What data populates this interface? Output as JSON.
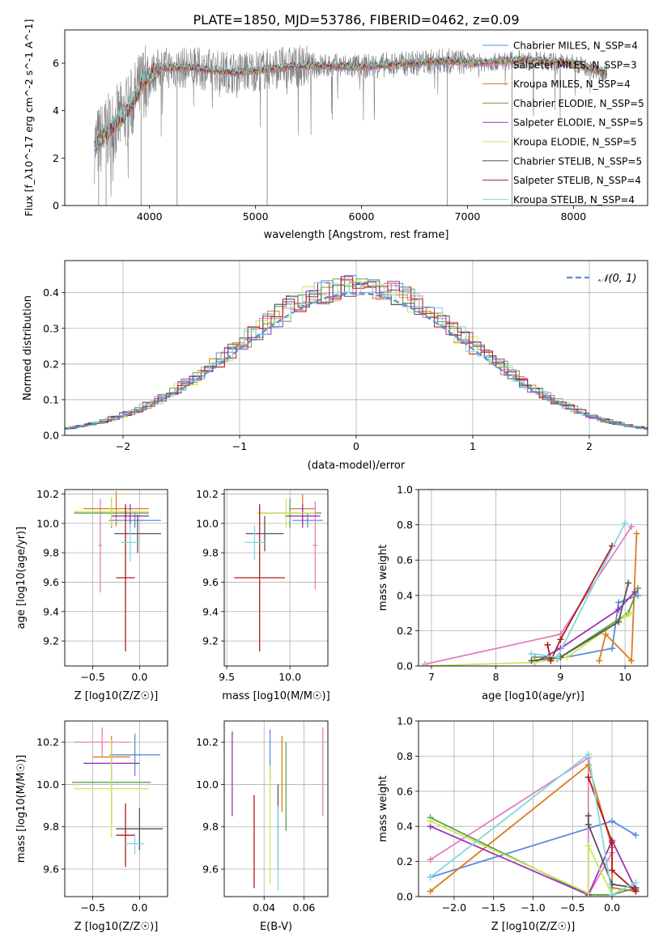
{
  "figure": {
    "title": "PLATE=1850, MJD=53786, FIBERID=0462, z=0.09"
  },
  "colors": {
    "Chabrier MILES": "#5b8bd9",
    "Salpeter MILES": "#e57fbe",
    "Kroupa MILES": "#e07b1a",
    "Chabrier ELODIE": "#5f9e4a",
    "Salpeter ELODIE": "#9b33b8",
    "Kroupa ELODIE": "#c9e85a",
    "Chabrier STELIB": "#555555",
    "Salpeter STELIB": "#b51a1a",
    "Kroupa STELIB": "#7fd8e0",
    "data": "#808080",
    "grid": "#b0b0b0",
    "normal_curve": "#5b8bd9"
  },
  "chart_data": [
    {
      "id": "spectrum",
      "type": "line",
      "xlabel": "wavelength [Angstrom, rest frame]",
      "ylabel": "Flux [f_λ10^-17 erg cm^-2 s^-1 A^-1]",
      "xlim": [
        3200,
        8700
      ],
      "ylim": [
        0,
        7.4
      ],
      "xticks": [
        4000,
        5000,
        6000,
        7000,
        8000
      ],
      "yticks": [
        0,
        2,
        4,
        6
      ],
      "grid": false,
      "legend_position": "right",
      "continuum_knots": [
        [
          3480,
          2.5
        ],
        [
          3600,
          3.1
        ],
        [
          3800,
          4.0
        ],
        [
          3950,
          5.3
        ],
        [
          4100,
          5.8
        ],
        [
          4400,
          5.8
        ],
        [
          4800,
          5.6
        ],
        [
          5000,
          5.7
        ],
        [
          5500,
          5.9
        ],
        [
          6000,
          5.85
        ],
        [
          6500,
          6.0
        ],
        [
          6800,
          6.1
        ],
        [
          7100,
          6.0
        ],
        [
          7500,
          6.15
        ],
        [
          8000,
          6.0
        ],
        [
          8300,
          5.6
        ]
      ],
      "data_dropouts": [
        3520,
        3590,
        3920,
        4260,
        5110,
        6810,
        7420
      ],
      "legend": [
        {
          "label": "Chabrier MILES, N_SSP=4"
        },
        {
          "label": "Salpeter MILES, N_SSP=3"
        },
        {
          "label": "Kroupa MILES, N_SSP=4"
        },
        {
          "label": "Chabrier ELODIE, N_SSP=5"
        },
        {
          "label": "Salpeter ELODIE, N_SSP=5"
        },
        {
          "label": "Kroupa ELODIE, N_SSP=5"
        },
        {
          "label": "Chabrier STELIB, N_SSP=5"
        },
        {
          "label": "Salpeter STELIB, N_SSP=4"
        },
        {
          "label": "Kroupa STELIB, N_SSP=4"
        }
      ]
    },
    {
      "id": "residuals",
      "type": "histogram",
      "xlabel": "(data-model)/error",
      "ylabel": "Normed distribution",
      "xlim": [
        -2.5,
        2.5
      ],
      "ylim": [
        0,
        0.49
      ],
      "xticks": [
        -2,
        -1,
        0,
        1,
        2
      ],
      "yticks": [
        0.0,
        0.1,
        0.2,
        0.3,
        0.4
      ],
      "grid": true,
      "legend_position": "top-right",
      "legend": [
        {
          "label": "𝒩(0, 1)"
        }
      ],
      "bin_width": 0.1
    },
    {
      "id": "age-vs-Z",
      "type": "scatter",
      "xlabel": "Z [log10(Z/Z☉)]",
      "ylabel": "age [log10(age/yr)]",
      "xlim": [
        -0.8,
        0.3
      ],
      "ylim": [
        9.03,
        10.23
      ],
      "xticks": [
        -0.5,
        0.0
      ],
      "yticks": [
        9.2,
        9.4,
        9.6,
        9.8,
        10.0,
        10.2
      ],
      "grid": true,
      "points": [
        {
          "model": "Chabrier MILES",
          "x": -0.05,
          "y": 10.02,
          "xerr": 0.28,
          "yerr": 0.05
        },
        {
          "model": "Salpeter MILES",
          "x": -0.42,
          "y": 9.85,
          "xerr": 0.02,
          "yerr": 0.32
        },
        {
          "model": "Kroupa MILES",
          "x": -0.25,
          "y": 10.1,
          "xerr": 0.35,
          "yerr": 0.12
        },
        {
          "model": "Chabrier ELODIE",
          "x": -0.3,
          "y": 10.07,
          "xerr": 0.4,
          "yerr": 0.1
        },
        {
          "model": "Salpeter ELODIE",
          "x": -0.1,
          "y": 10.05,
          "xerr": 0.2,
          "yerr": 0.08
        },
        {
          "model": "Kroupa ELODIE",
          "x": -0.3,
          "y": 10.08,
          "xerr": 0.4,
          "yerr": 0.1
        },
        {
          "model": "Chabrier STELIB",
          "x": -0.02,
          "y": 9.93,
          "xerr": 0.25,
          "yerr": 0.13
        },
        {
          "model": "Salpeter STELIB",
          "x": -0.15,
          "y": 9.63,
          "xerr": 0.1,
          "yerr": 0.5
        },
        {
          "model": "Kroupa STELIB",
          "x": -0.1,
          "y": 9.87,
          "xerr": 0.1,
          "yerr": 0.13
        }
      ]
    },
    {
      "id": "age-vs-mass",
      "type": "scatter",
      "xlabel": "mass [log10(M/M☉)]",
      "ylabel": "",
      "xlim": [
        9.48,
        10.3
      ],
      "ylim": [
        9.03,
        10.23
      ],
      "xticks": [
        9.5,
        10.0
      ],
      "yticks": [
        9.2,
        9.4,
        9.6,
        9.8,
        10.0,
        10.2
      ],
      "grid": true,
      "points": [
        {
          "model": "Chabrier MILES",
          "x": 10.14,
          "y": 10.02,
          "xerr": 0.12,
          "yerr": 0.05
        },
        {
          "model": "Salpeter MILES",
          "x": 10.2,
          "y": 9.85,
          "xerr": 0.02,
          "yerr": 0.3
        },
        {
          "model": "Kroupa MILES",
          "x": 10.1,
          "y": 10.1,
          "xerr": 0.1,
          "yerr": 0.1
        },
        {
          "model": "Chabrier ELODIE",
          "x": 10.0,
          "y": 10.07,
          "xerr": 0.25,
          "yerr": 0.1
        },
        {
          "model": "Salpeter ELODIE",
          "x": 10.1,
          "y": 10.05,
          "xerr": 0.14,
          "yerr": 0.08
        },
        {
          "model": "Kroupa ELODIE",
          "x": 9.97,
          "y": 10.07,
          "xerr": 0.23,
          "yerr": 0.1
        },
        {
          "model": "Chabrier STELIB",
          "x": 9.8,
          "y": 9.93,
          "xerr": 0.15,
          "yerr": 0.12
        },
        {
          "model": "Salpeter STELIB",
          "x": 9.76,
          "y": 9.63,
          "xerr": 0.2,
          "yerr": 0.5
        },
        {
          "model": "Kroupa STELIB",
          "x": 9.72,
          "y": 9.87,
          "xerr": 0.08,
          "yerr": 0.12
        }
      ]
    },
    {
      "id": "weight-vs-age",
      "type": "line",
      "xlabel": "age [log10(age/yr)]",
      "ylabel": "mass weight",
      "xlim": [
        6.8,
        10.35
      ],
      "ylim": [
        0,
        1.0
      ],
      "xticks": [
        7,
        8,
        9,
        10
      ],
      "yticks": [
        0.0,
        0.2,
        0.4,
        0.6,
        0.8,
        1.0
      ],
      "grid": true,
      "series": [
        {
          "model": "Chabrier MILES",
          "x": [
            8.95,
            9.8,
            9.9,
            10.2
          ],
          "y": [
            0.04,
            0.1,
            0.36,
            0.4
          ]
        },
        {
          "model": "Salpeter MILES",
          "x": [
            6.9,
            9.0,
            10.1
          ],
          "y": [
            0.01,
            0.18,
            0.79
          ]
        },
        {
          "model": "Kroupa MILES",
          "x": [
            9.6,
            9.7,
            10.1,
            10.18
          ],
          "y": [
            0.03,
            0.18,
            0.03,
            0.75
          ]
        },
        {
          "model": "Chabrier ELODIE",
          "x": [
            8.6,
            9.0,
            10.05,
            10.2
          ],
          "y": [
            0.05,
            0.05,
            0.3,
            0.44
          ]
        },
        {
          "model": "Salpeter ELODIE",
          "x": [
            8.6,
            9.0,
            9.9,
            10.15
          ],
          "y": [
            0.02,
            0.1,
            0.32,
            0.42
          ]
        },
        {
          "model": "Kroupa ELODIE",
          "x": [
            6.9,
            8.6,
            9.1,
            10.0,
            10.08
          ],
          "y": [
            0.0,
            0.02,
            0.05,
            0.28,
            0.3
          ]
        },
        {
          "model": "Chabrier STELIB",
          "x": [
            8.55,
            9.0,
            9.9,
            10.05
          ],
          "y": [
            0.03,
            0.05,
            0.25,
            0.47
          ]
        },
        {
          "model": "Salpeter STELIB",
          "x": [
            8.8,
            8.85,
            9.0,
            9.8
          ],
          "y": [
            0.12,
            0.03,
            0.15,
            0.68
          ]
        },
        {
          "model": "Kroupa STELIB",
          "x": [
            8.55,
            8.95,
            10.0
          ],
          "y": [
            0.07,
            0.05,
            0.81
          ]
        }
      ]
    },
    {
      "id": "mass-vs-Z",
      "type": "scatter",
      "xlabel": "Z [log10(Z/Z☉)]",
      "ylabel": "mass [log10(M/M☉)]",
      "xlim": [
        -0.8,
        0.3
      ],
      "ylim": [
        9.47,
        10.3
      ],
      "xticks": [
        -0.5,
        0.0
      ],
      "yticks": [
        9.6,
        9.8,
        10.0,
        10.2
      ],
      "grid": true,
      "points": [
        {
          "model": "Chabrier MILES",
          "x": -0.05,
          "y": 10.14,
          "xerr": 0.27,
          "yerr": 0.1
        },
        {
          "model": "Salpeter MILES",
          "x": -0.4,
          "y": 10.2,
          "xerr": 0.3,
          "yerr": 0.07
        },
        {
          "model": "Kroupa MILES",
          "x": -0.3,
          "y": 10.13,
          "xerr": 0.2,
          "yerr": 0.1
        },
        {
          "model": "Chabrier ELODIE",
          "x": -0.3,
          "y": 10.01,
          "xerr": 0.42,
          "yerr": 0.2
        },
        {
          "model": "Salpeter ELODIE",
          "x": -0.3,
          "y": 10.1,
          "xerr": 0.3,
          "yerr": 0.08
        },
        {
          "model": "Kroupa ELODIE",
          "x": -0.3,
          "y": 9.98,
          "xerr": 0.4,
          "yerr": 0.23
        },
        {
          "model": "Chabrier STELIB",
          "x": 0.0,
          "y": 9.79,
          "xerr": 0.25,
          "yerr": 0.1
        },
        {
          "model": "Salpeter STELIB",
          "x": -0.15,
          "y": 9.76,
          "xerr": 0.1,
          "yerr": 0.15
        },
        {
          "model": "Kroupa STELIB",
          "x": -0.05,
          "y": 9.72,
          "xerr": 0.1,
          "yerr": 0.05
        }
      ]
    },
    {
      "id": "mass-vs-EBV",
      "type": "scatter",
      "xlabel": "E(B-V)",
      "ylabel": "",
      "xlim": [
        0.02,
        0.072
      ],
      "ylim": [
        9.47,
        10.3
      ],
      "xticks": [
        0.04,
        0.06
      ],
      "yticks": [
        9.6,
        9.8,
        10.0,
        10.2
      ],
      "grid": true,
      "points": [
        {
          "model": "Chabrier MILES",
          "x": 0.043,
          "y": 10.14,
          "yerr": 0.12
        },
        {
          "model": "Salpeter MILES",
          "x": 0.0695,
          "y": 10.06,
          "yerr": 0.21
        },
        {
          "model": "Kroupa MILES",
          "x": 0.049,
          "y": 10.05,
          "yerr": 0.18
        },
        {
          "model": "Chabrier ELODIE",
          "x": 0.051,
          "y": 9.99,
          "yerr": 0.21
        },
        {
          "model": "Salpeter ELODIE",
          "x": 0.024,
          "y": 10.05,
          "yerr": 0.2
        },
        {
          "model": "Kroupa ELODIE",
          "x": 0.043,
          "y": 9.81,
          "yerr": 0.28
        },
        {
          "model": "Chabrier STELIB",
          "x": 0.047,
          "y": 9.8,
          "yerr": 0.2
        },
        {
          "model": "Salpeter STELIB",
          "x": 0.035,
          "y": 9.73,
          "yerr": 0.22
        },
        {
          "model": "Kroupa STELIB",
          "x": 0.047,
          "y": 9.7,
          "yerr": 0.2
        }
      ]
    },
    {
      "id": "weight-vs-Z",
      "type": "line",
      "xlabel": "Z [log10(Z/Z☉)]",
      "ylabel": "mass weight",
      "xlim": [
        -2.45,
        0.45
      ],
      "ylim": [
        0,
        1.0
      ],
      "xticks": [
        -2.0,
        -1.5,
        -1.0,
        -0.5,
        0.0
      ],
      "yticks": [
        0.0,
        0.2,
        0.4,
        0.6,
        0.8,
        1.0
      ],
      "grid": true,
      "series": [
        {
          "model": "Chabrier MILES",
          "x": [
            -2.3,
            0.0,
            0.3
          ],
          "y": [
            0.11,
            0.43,
            0.35
          ]
        },
        {
          "model": "Salpeter MILES",
          "x": [
            -2.3,
            -0.3,
            -0.3,
            0.0
          ],
          "y": [
            0.21,
            0.79,
            0.01,
            0.25
          ]
        },
        {
          "model": "Kroupa MILES",
          "x": [
            -2.3,
            -0.3,
            0.0,
            0.0,
            0.3
          ],
          "y": [
            0.03,
            0.75,
            0.28,
            0.05,
            0.03
          ]
        },
        {
          "model": "Chabrier ELODIE",
          "x": [
            -2.3,
            -0.3,
            0.0,
            0.3
          ],
          "y": [
            0.45,
            0.01,
            0.01,
            0.05
          ]
        },
        {
          "model": "Salpeter ELODIE",
          "x": [
            -2.3,
            -0.3,
            0.0,
            0.3
          ],
          "y": [
            0.4,
            0.01,
            0.32,
            0.04
          ]
        },
        {
          "model": "Kroupa ELODIE",
          "x": [
            -2.3,
            -0.3,
            -0.3,
            0.0
          ],
          "y": [
            0.43,
            0.02,
            0.29,
            0.01
          ]
        },
        {
          "model": "Chabrier STELIB",
          "x": [
            -0.3,
            -0.3,
            0.0,
            0.3
          ],
          "y": [
            0.46,
            0.41,
            0.07,
            0.05
          ]
        },
        {
          "model": "Salpeter STELIB",
          "x": [
            -0.3,
            0.0,
            0.0,
            0.3
          ],
          "y": [
            0.68,
            0.31,
            0.15,
            0.03
          ]
        },
        {
          "model": "Kroupa STELIB",
          "x": [
            -2.3,
            -0.3,
            0.0,
            0.3
          ],
          "y": [
            0.11,
            0.81,
            0.01,
            0.08
          ]
        }
      ]
    }
  ]
}
